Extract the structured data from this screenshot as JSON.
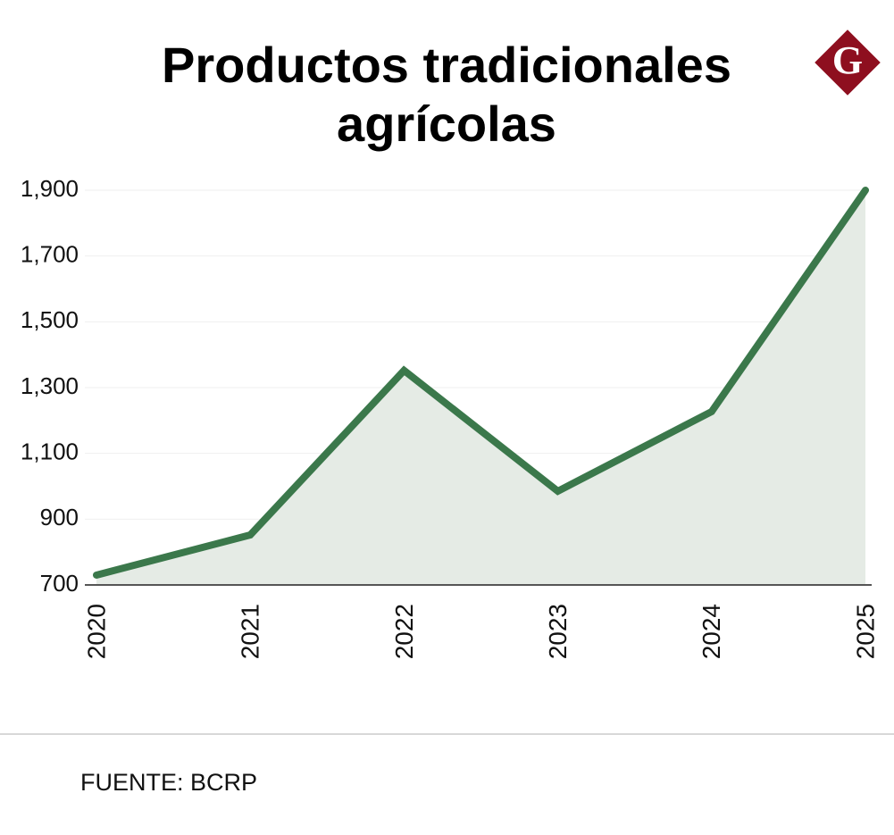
{
  "logo": "G",
  "chart_data": {
    "type": "area",
    "title": "Productos tradicionales agrícolas",
    "categories": [
      "2020",
      "2021",
      "2022",
      "2023",
      "2024",
      "2025"
    ],
    "values": [
      730,
      852,
      1352,
      985,
      1227,
      1900
    ],
    "color": "#3b784b",
    "fill_color": "#e5ebe5",
    "ylim": [
      700,
      1900
    ],
    "yticks": [
      700,
      900,
      {
        "value": 1100,
        "label": "1,100"
      },
      {
        "value": 1300,
        "label": "1,300"
      },
      {
        "value": 1500,
        "label": "1,500"
      },
      {
        "value": 1700,
        "label": "1,700"
      },
      {
        "value": 1900,
        "label": "1,900"
      }
    ],
    "grid": true,
    "source": "FUENTE: BCRP"
  }
}
